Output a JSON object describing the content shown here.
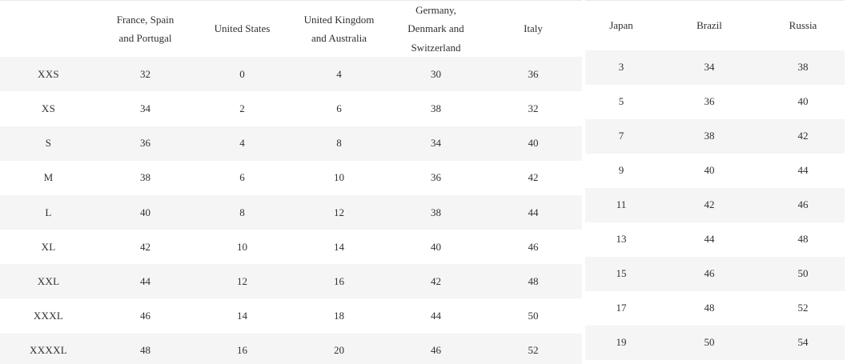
{
  "colors": {
    "background": "#ffffff",
    "row_stripe": "#f5f5f5",
    "text": "#303030",
    "top_border": "#e9e9e9"
  },
  "size_chart": {
    "left_table": {
      "columns": [
        "",
        "France, Spain and Portugal",
        "United States",
        "United Kingdom and Australia",
        "Germany, Denmark and Switzerland",
        "Italy"
      ],
      "rows": [
        {
          "size": "XXS",
          "values": [
            "32",
            "0",
            "4",
            "30",
            "36"
          ]
        },
        {
          "size": "XS",
          "values": [
            "34",
            "2",
            "6",
            "38",
            "32"
          ]
        },
        {
          "size": "S",
          "values": [
            "36",
            "4",
            "8",
            "34",
            "40"
          ]
        },
        {
          "size": "M",
          "values": [
            "38",
            "6",
            "10",
            "36",
            "42"
          ]
        },
        {
          "size": "L",
          "values": [
            "40",
            "8",
            "12",
            "38",
            "44"
          ]
        },
        {
          "size": "XL",
          "values": [
            "42",
            "10",
            "14",
            "40",
            "46"
          ]
        },
        {
          "size": "XXL",
          "values": [
            "44",
            "12",
            "16",
            "42",
            "48"
          ]
        },
        {
          "size": "XXXL",
          "values": [
            "46",
            "14",
            "18",
            "44",
            "50"
          ]
        },
        {
          "size": "XXXXL",
          "values": [
            "48",
            "16",
            "20",
            "46",
            "52"
          ]
        }
      ]
    },
    "right_table": {
      "columns": [
        "Japan",
        "Brazil",
        "Russia"
      ],
      "rows": [
        [
          "3",
          "34",
          "38"
        ],
        [
          "5",
          "36",
          "40"
        ],
        [
          "7",
          "38",
          "42"
        ],
        [
          "9",
          "40",
          "44"
        ],
        [
          "11",
          "42",
          "46"
        ],
        [
          "13",
          "44",
          "48"
        ],
        [
          "15",
          "46",
          "50"
        ],
        [
          "17",
          "48",
          "52"
        ],
        [
          "19",
          "50",
          "54"
        ]
      ]
    }
  }
}
